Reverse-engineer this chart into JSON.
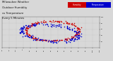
{
  "title_line1": "Milwaukee Weather",
  "title_line2": "Outdoor Humidity",
  "title_line3": "vs Temperature",
  "title_line4": "Every 5 Minutes",
  "title_fontsize": 2.8,
  "bg_color": "#d8d8d8",
  "plot_bg_color": "#d8d8d8",
  "red_color": "#cc0000",
  "blue_color": "#0000cc",
  "legend_red_label": "Humidity",
  "legend_blue_label": "Temperature",
  "xlim": [
    -30,
    110
  ],
  "ylim": [
    0,
    100
  ],
  "marker_size": 1.2,
  "grid_color": "#aaaaaa",
  "ytick_labels": [
    "20",
    "40",
    "60",
    "80",
    "100"
  ],
  "ytick_vals": [
    20,
    40,
    60,
    80,
    100
  ],
  "xtick_labels": [
    "-30",
    "-20",
    "-10",
    "0",
    "10",
    "20",
    "30",
    "40",
    "50",
    "60",
    "70",
    "80",
    "90",
    "100",
    "110"
  ],
  "xtick_vals": [
    -30,
    -20,
    -10,
    0,
    10,
    20,
    30,
    40,
    50,
    60,
    70,
    80,
    90,
    100,
    110
  ]
}
